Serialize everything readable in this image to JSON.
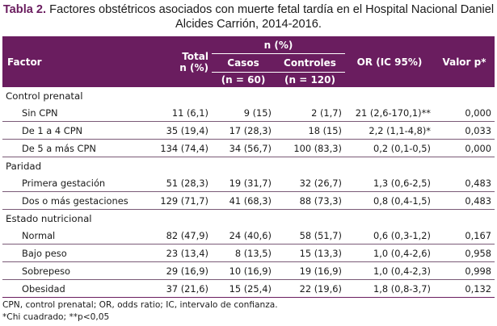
{
  "caption": {
    "label": "Tabla 2.",
    "text_line1": " Factores obstétricos asociados con muerte fetal tardía en el Hospital Nacional Daniel",
    "text_line2": "Alcides Carrión, 2014-2016."
  },
  "header": {
    "factor": "Factor",
    "total": "Total",
    "total_unit": "n (%)",
    "n_pct": "n (%)",
    "casos": "Casos",
    "casos_n": "(n = 60)",
    "controles": "Controles",
    "controles_n": "(n = 120)",
    "or": "OR (IC 95%)",
    "p": "Valor p*"
  },
  "sections": [
    {
      "title": "Control prenatal",
      "rows": [
        {
          "factor": "Sin CPN",
          "total": "11 (6,1)",
          "casos": "9 (15)",
          "controles": "2 (1,7)",
          "or": "21 (2,6-170,1)**",
          "p": "0,000"
        },
        {
          "factor": "De 1 a 4 CPN",
          "total": "35 (19,4)",
          "casos": "17 (28,3)",
          "controles": "18 (15)",
          "or": "2,2 (1,1-4,8)*",
          "p": "0,033"
        },
        {
          "factor": "De 5 a más CPN",
          "total": "134 (74,4)",
          "casos": "34 (56,7)",
          "controles": "100 (83,3)",
          "or": "0,2 (0,1-0,5)",
          "p": "0,000"
        }
      ]
    },
    {
      "title": "Paridad",
      "rows": [
        {
          "factor": "Primera gestación",
          "total": "51 (28,3)",
          "casos": "19 (31,7)",
          "controles": "32 (26,7)",
          "or": "1,3 (0,6-2,5)",
          "p": "0,483"
        },
        {
          "factor": "Dos o más gestaciones",
          "total": "129 (71,7)",
          "casos": "41 (68,3)",
          "controles": "88 (73,3)",
          "or": "0,8 (0,4-1,5)",
          "p": "0,483"
        }
      ]
    },
    {
      "title": "Estado nutricional",
      "rows": [
        {
          "factor": "Normal",
          "total": "82 (47,9)",
          "casos": "24 (40,6)",
          "controles": "58 (51,7)",
          "or": "0,6 (0,3-1,2)",
          "p": "0,167"
        },
        {
          "factor": "Bajo peso",
          "total": "23 (13,4)",
          "casos": "8 (13,5)",
          "controles": "15 (13,3)",
          "or": "1,0 (0,4-2,6)",
          "p": "0,958"
        },
        {
          "factor": "Sobrepeso",
          "total": "29 (16,9)",
          "casos": "10 (16,9)",
          "controles": "19 (16,9)",
          "or": "1,0 (0,4-2,3)",
          "p": "0,998"
        },
        {
          "factor": "Obesidad",
          "total": "37 (21,6)",
          "casos": "15 (25,4)",
          "controles": "22 (19,6)",
          "or": "1,8 (0,8-3,7)",
          "p": "0,132"
        }
      ]
    }
  ],
  "notes": {
    "line1": "CPN, control prenatal; OR, odds ratio; IC, intervalo de confianza.",
    "line2": "*Chi cuadrado; **p<0,05"
  },
  "colors": {
    "header_bg": "#6a1d5f",
    "label_accent": "#6a1d5f"
  }
}
